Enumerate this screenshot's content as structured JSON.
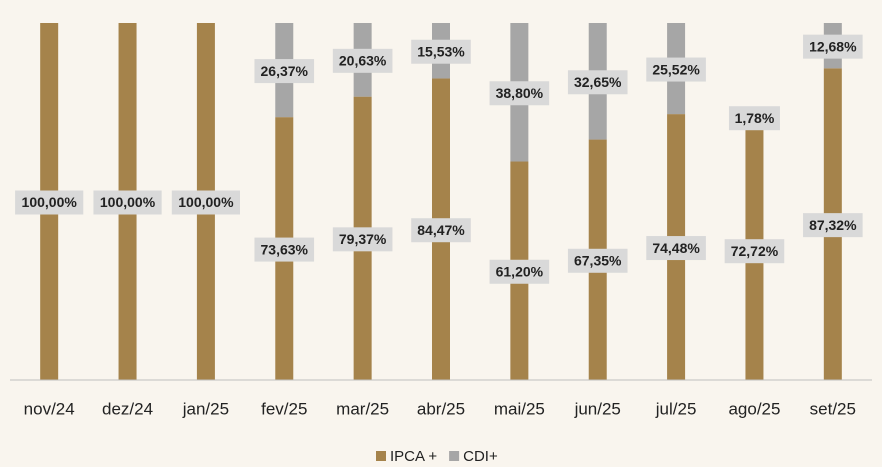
{
  "chart_data": {
    "type": "bar",
    "stacked": true,
    "categories": [
      "nov/24",
      "dez/24",
      "jan/25",
      "fev/25",
      "mar/25",
      "abr/25",
      "mai/25",
      "jun/25",
      "jul/25",
      "ago/25",
      "set/25"
    ],
    "series": [
      {
        "name": "IPCA +",
        "color": "#a5834b",
        "values": [
          100,
          100,
          100,
          73.63,
          79.37,
          84.47,
          61.2,
          67.35,
          74.48,
          72.72,
          87.32
        ],
        "value_labels": [
          "100,00%",
          "100,00%",
          "100,00%",
          "73,63%",
          "79,37%",
          "84,47%",
          "61,20%",
          "67,35%",
          "74,48%",
          "72,72%",
          "87,32%"
        ]
      },
      {
        "name": "CDI+",
        "color": "#a6a6a6",
        "values": [
          0,
          0,
          0,
          26.37,
          20.63,
          15.53,
          38.8,
          32.65,
          25.52,
          1.78,
          12.68
        ],
        "value_labels": [
          null,
          null,
          null,
          "26,37%",
          "20,63%",
          "15,53%",
          "38,80%",
          "32,65%",
          "25,52%",
          "1,78%",
          "12,68%"
        ]
      }
    ],
    "ylim": [
      0,
      100
    ],
    "legend": "bottom"
  }
}
